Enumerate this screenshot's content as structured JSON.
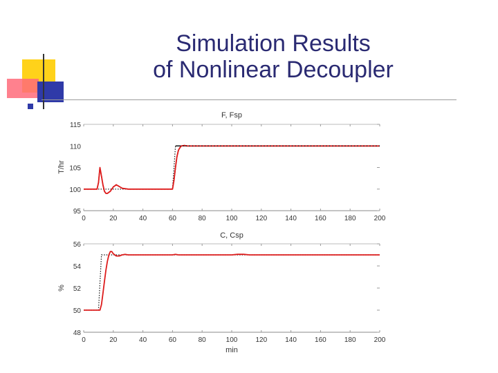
{
  "slide": {
    "title_line1": "Simulation Results",
    "title_line2": "of Nonlinear Decoupler"
  },
  "colors": {
    "title": "#2a2a72",
    "response": "#dd1c1c",
    "setpoint": "#111111",
    "deco_yellow": "#ffd21a",
    "deco_pink": "#ff6b7a",
    "deco_blue": "#2f3aa8",
    "rule": "#9a9a9a"
  },
  "chart_data": [
    {
      "type": "line",
      "title": "F, Fsp",
      "xlabel": "",
      "ylabel": "T/hr",
      "xlim": [
        0,
        200
      ],
      "ylim": [
        95,
        115
      ],
      "xticks": [
        "0",
        "20",
        "40",
        "60",
        "80",
        "100",
        "120",
        "140",
        "160",
        "180",
        "200"
      ],
      "yticks": [
        "95",
        "100",
        "105",
        "110",
        "115"
      ],
      "grid": false,
      "series": [
        {
          "role": "setpoint",
          "x": [
            0,
            60,
            62,
            200
          ],
          "y": [
            100,
            100,
            110,
            110
          ]
        },
        {
          "role": "response",
          "x": [
            0,
            9,
            10,
            11,
            12,
            13,
            14,
            15,
            16,
            18,
            20,
            22,
            24,
            26,
            30,
            40,
            50,
            58,
            60,
            61,
            62,
            63,
            64,
            65,
            66,
            68,
            70,
            80,
            100,
            120,
            140,
            160,
            180,
            200
          ],
          "y": [
            100,
            100,
            101.5,
            105,
            103,
            101,
            99.5,
            99,
            99,
            99.5,
            100.5,
            101,
            100.6,
            100.2,
            100,
            100,
            100,
            100,
            100,
            102,
            105,
            107.5,
            109,
            109.6,
            110,
            110.1,
            110,
            110,
            110,
            110,
            110,
            110,
            110,
            110
          ]
        }
      ]
    },
    {
      "type": "line",
      "title": "C, Csp",
      "xlabel": "min",
      "ylabel": "%",
      "xlim": [
        0,
        200
      ],
      "ylim": [
        48,
        56
      ],
      "xticks": [
        "0",
        "20",
        "40",
        "60",
        "80",
        "100",
        "120",
        "140",
        "160",
        "180",
        "200"
      ],
      "yticks": [
        "48",
        "50",
        "52",
        "54",
        "56"
      ],
      "grid": false,
      "series": [
        {
          "role": "setpoint",
          "x": [
            0,
            10,
            12,
            200
          ],
          "y": [
            50,
            50,
            55,
            55
          ]
        },
        {
          "role": "response",
          "x": [
            0,
            11,
            12,
            13,
            14,
            15,
            16,
            17,
            18,
            19,
            20,
            22,
            24,
            26,
            28,
            30,
            40,
            60,
            62,
            64,
            100,
            104,
            108,
            112,
            200
          ],
          "y": [
            50,
            50,
            50.5,
            51.5,
            52.6,
            53.6,
            54.4,
            55,
            55.3,
            55.3,
            55.1,
            54.9,
            54.9,
            55,
            55.05,
            55,
            55,
            55,
            55.05,
            55,
            55,
            55.05,
            55.05,
            55,
            55
          ]
        }
      ]
    }
  ]
}
